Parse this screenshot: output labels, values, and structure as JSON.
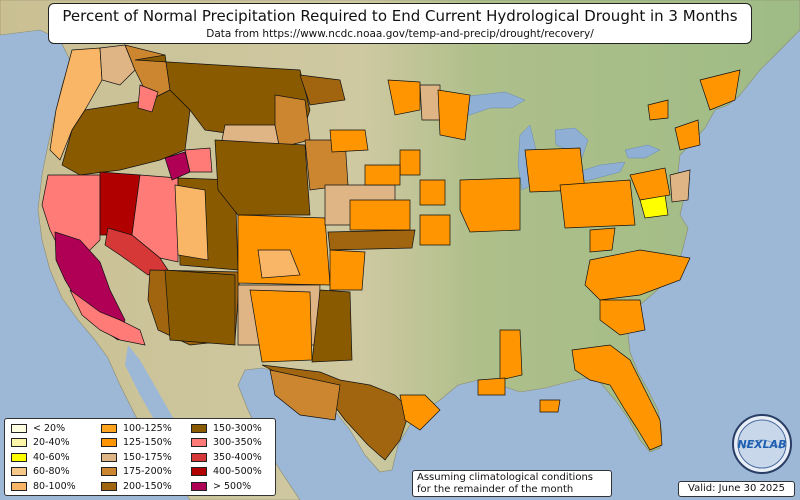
{
  "title": "Percent of Normal Precipitation Required to End Current Hydrological Drought in 3 Months",
  "subtitle": "Data from https://www.ncdc.noaa.gov/temp-and-precip/drought/recovery/",
  "legend": [
    {
      "label": "< 20%",
      "color": "#fefee0"
    },
    {
      "label": "20-40%",
      "color": "#fdf6a8"
    },
    {
      "label": "40-60%",
      "color": "#ffff00"
    },
    {
      "label": "60-80%",
      "color": "#f5c88a"
    },
    {
      "label": "80-100%",
      "color": "#f8b666"
    },
    {
      "label": "100-125%",
      "color": "#ffa41c"
    },
    {
      "label": "125-150%",
      "color": "#ff9500"
    },
    {
      "label": "150-175%",
      "color": "#dfb585"
    },
    {
      "label": "175-200%",
      "color": "#cd8630"
    },
    {
      "label": "200-150%",
      "color": "#a0650e"
    },
    {
      "label": "150-300%",
      "color": "#8a5a00"
    },
    {
      "label": "300-350%",
      "color": "#ff7b78"
    },
    {
      "label": "350-400%",
      "color": "#d63838"
    },
    {
      "label": "400-500%",
      "color": "#b00000"
    },
    {
      "label": "> 500%",
      "color": "#b00055"
    }
  ],
  "note_line1": "Assuming climatological conditions",
  "note_line2": "for the remainder of the month",
  "valid": "Valid: June 30 2025",
  "logo_text": "NEXLAB",
  "colors": {
    "ocean": "#9db8d6",
    "land_green": "#a9c28f",
    "land_tan": "#d3c59b",
    "land_light": "#dcd8b8"
  }
}
